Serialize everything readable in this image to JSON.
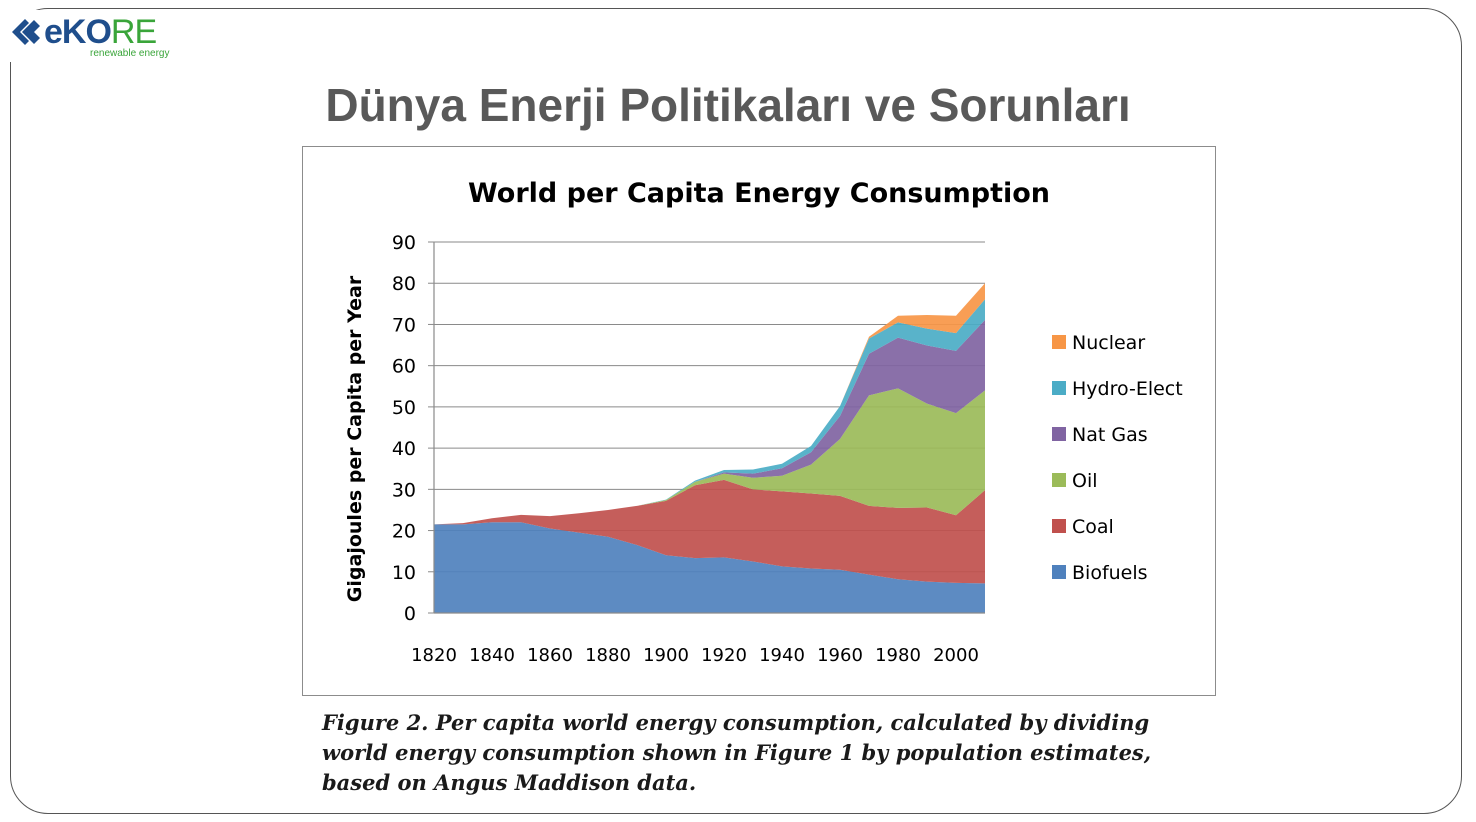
{
  "logo": {
    "brand_part1": "eKO",
    "brand_part2": "RE",
    "tagline": "renewable energy",
    "colors": {
      "blue": "#1f4e8c",
      "green": "#3aa53a"
    }
  },
  "slide": {
    "title": "Dünya Enerji Politikaları ve Sorunları"
  },
  "caption": "Figure 2. Per capita world energy consumption, calculated by dividing world energy consumption shown in Figure 1 by population estimates, based on Angus Maddison data.",
  "chart_data": {
    "type": "area",
    "stacked": true,
    "title": "World per Capita Energy Consumption",
    "xlabel": "",
    "ylabel": "Gigajoules per Capita per Year",
    "ylim": [
      0,
      90
    ],
    "xlim": [
      1820,
      2010
    ],
    "yticks": [
      0,
      10,
      20,
      30,
      40,
      50,
      60,
      70,
      80,
      90
    ],
    "xticks": [
      1820,
      1840,
      1860,
      1880,
      1900,
      1920,
      1940,
      1960,
      1980,
      2000
    ],
    "grid": true,
    "legend_position": "right",
    "x": [
      1820,
      1830,
      1840,
      1850,
      1860,
      1870,
      1880,
      1890,
      1900,
      1910,
      1920,
      1930,
      1940,
      1950,
      1960,
      1970,
      1980,
      1990,
      2000,
      2010
    ],
    "series": [
      {
        "name": "Biofuels",
        "color": "#4f81bd",
        "values": [
          21.5,
          21.5,
          22.0,
          22.0,
          20.5,
          19.5,
          18.5,
          16.5,
          14.0,
          13.3,
          13.5,
          12.5,
          11.3,
          10.8,
          10.5,
          9.3,
          8.2,
          7.6,
          7.3,
          7.2
        ]
      },
      {
        "name": "Coal",
        "color": "#c0504d",
        "values": [
          0.0,
          0.3,
          1.0,
          1.8,
          3.0,
          4.7,
          6.5,
          9.5,
          13.2,
          17.7,
          18.8,
          17.5,
          18.2,
          18.2,
          17.9,
          16.7,
          17.3,
          18.0,
          16.4,
          22.6
        ]
      },
      {
        "name": "Oil",
        "color": "#9bbb59",
        "values": [
          0,
          0,
          0,
          0,
          0,
          0,
          0,
          0,
          0.2,
          0.8,
          1.5,
          2.8,
          3.8,
          7.0,
          13.8,
          26.8,
          29.0,
          25.2,
          24.8,
          24.2
        ]
      },
      {
        "name": "Nat Gas",
        "color": "#8064a2",
        "values": [
          0,
          0,
          0,
          0,
          0,
          0,
          0,
          0,
          0,
          0,
          0.3,
          1.0,
          1.8,
          3.0,
          5.6,
          10.1,
          12.3,
          14.1,
          15.1,
          17.1
        ]
      },
      {
        "name": "Hydro-Elect",
        "color": "#4bacc6",
        "values": [
          0,
          0,
          0,
          0,
          0,
          0,
          0,
          0,
          0.1,
          0.3,
          0.6,
          1.0,
          1.1,
          1.5,
          2.4,
          3.7,
          3.7,
          4.1,
          4.3,
          5.0
        ]
      },
      {
        "name": "Nuclear",
        "color": "#f79646",
        "values": [
          0,
          0,
          0,
          0,
          0,
          0,
          0,
          0,
          0,
          0,
          0,
          0,
          0,
          0,
          0,
          0.4,
          1.6,
          3.3,
          4.2,
          3.9
        ]
      }
    ]
  }
}
